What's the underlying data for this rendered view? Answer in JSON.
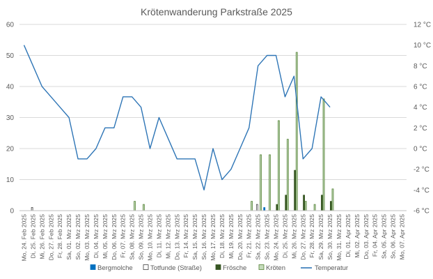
{
  "chart_data": {
    "type": "bar",
    "title": "Krötenwanderung Parkstraße 2025",
    "categories": [
      "Mo, 24. Feb 2025",
      "Di, 25. Feb 2025",
      "Mi, 26. Feb 2025",
      "Do, 27. Feb 2025",
      "Fr, 28. Feb 2025",
      "Sa, 01. Mrz 2025",
      "So, 02. Mrz 2025",
      "Mo, 03. Mrz 2025",
      "Di, 04. Mrz 2025",
      "Mi, 05. Mrz 2025",
      "Do, 06. Mrz 2025",
      "Fr, 07. Mrz 2025",
      "Sa, 08. Mrz 2025",
      "So, 09. Mrz 2025",
      "Mo, 10. Mrz 2025",
      "Di, 11. Mrz 2025",
      "Mi, 12. Mrz 2025",
      "Do, 13. Mrz 2025",
      "Fr, 14. Mrz 2025",
      "Sa, 15. Mrz 2025",
      "So, 16. Mrz 2025",
      "Mo, 17. Mrz 2025",
      "Di, 18. Mrz 2025",
      "Mi, 19. Mrz 2025",
      "Do, 20. Mrz 2025",
      "Fr, 21. Mrz 2025",
      "Sa, 22. Mrz 2025",
      "So, 23. Mrz 2025",
      "Mo, 24. Mrz 2025",
      "Di, 25. Mrz 2025",
      "Mi, 26. Mrz 2025",
      "Do, 27. Mrz 2025",
      "Fr, 28. Mrz 2025",
      "Sa, 29. Mrz 2025",
      "So, 30. Mrz 2025",
      "Mo, 31. Mrz 2025",
      "Di, 01. Apr 2025",
      "Mi, 02. Apr 2025",
      "Do, 03. Apr 2025",
      "Fr, 04. Apr 2025",
      "Sa, 05. Apr 2025",
      "So, 06. Apr 2025",
      "Mo, 07. Apr 2025"
    ],
    "ylim": [
      0,
      60
    ],
    "yticks": [
      0,
      10,
      20,
      30,
      40,
      50,
      60
    ],
    "y2lim": [
      -6,
      12
    ],
    "y2ticks": [
      -6,
      -4,
      -2,
      0,
      2,
      4,
      6,
      8,
      10,
      12
    ],
    "y2_unit": "°C",
    "grid": true,
    "legend": "bottom",
    "series": [
      {
        "name": "Bergmolche",
        "type": "bar",
        "color": "#0070c0",
        "border": "#0070c0",
        "values": [
          0,
          0,
          0,
          0,
          0,
          0,
          0,
          0,
          0,
          0,
          0,
          0,
          0,
          0,
          0,
          0,
          0,
          0,
          0,
          0,
          0,
          0,
          0,
          0,
          0,
          0,
          0,
          1,
          0,
          0,
          0,
          0,
          0,
          0,
          0,
          0,
          0,
          0,
          0,
          0,
          0,
          0,
          0
        ]
      },
      {
        "name": "Totfunde (Straße)",
        "type": "bar",
        "color": "#ffffff",
        "border": "#404040",
        "values": [
          0,
          1,
          0,
          0,
          0,
          0,
          0,
          0,
          0,
          0,
          0,
          0,
          0,
          0,
          0,
          0,
          0,
          0,
          0,
          0,
          0,
          0,
          0,
          0,
          0,
          0,
          2,
          0,
          0,
          0,
          0,
          0,
          0,
          0,
          0,
          0,
          0,
          0,
          0,
          0,
          0,
          0,
          0
        ]
      },
      {
        "name": "Frösche",
        "type": "bar",
        "color": "#375623",
        "border": "#375623",
        "values": [
          0,
          0,
          0,
          0,
          0,
          0,
          0,
          0,
          0,
          0,
          0,
          0,
          0,
          0,
          0,
          0,
          0,
          0,
          0,
          0,
          0,
          0,
          0,
          0,
          0,
          0,
          0,
          0,
          2,
          5,
          13,
          5,
          0,
          5,
          3,
          0,
          0,
          0,
          0,
          0,
          0,
          0,
          0
        ]
      },
      {
        "name": "Kröten",
        "type": "bar",
        "color": "#c5dbbc",
        "border": "#548235",
        "values": [
          0,
          0,
          0,
          0,
          0,
          0,
          0,
          0,
          0,
          0,
          0,
          0,
          3,
          2,
          0,
          0,
          0,
          0,
          0,
          0,
          0,
          0,
          0,
          0,
          0,
          3,
          18,
          18,
          29,
          23,
          51,
          3,
          2,
          36,
          7,
          0,
          0,
          0,
          0,
          0,
          0,
          0,
          0
        ]
      },
      {
        "name": "Temperatur",
        "type": "line",
        "axis": "right",
        "color": "#2e75b6",
        "values": [
          10,
          8,
          6,
          5,
          4,
          3,
          -1,
          -1,
          0,
          2,
          2,
          5,
          5,
          4,
          0,
          3,
          1,
          -1,
          -1,
          -1,
          -4,
          0,
          -3,
          -2,
          0,
          2,
          8,
          9,
          9,
          5,
          7,
          -1,
          0,
          5,
          4,
          null,
          null,
          null,
          null,
          null,
          null,
          null,
          null
        ]
      }
    ]
  }
}
